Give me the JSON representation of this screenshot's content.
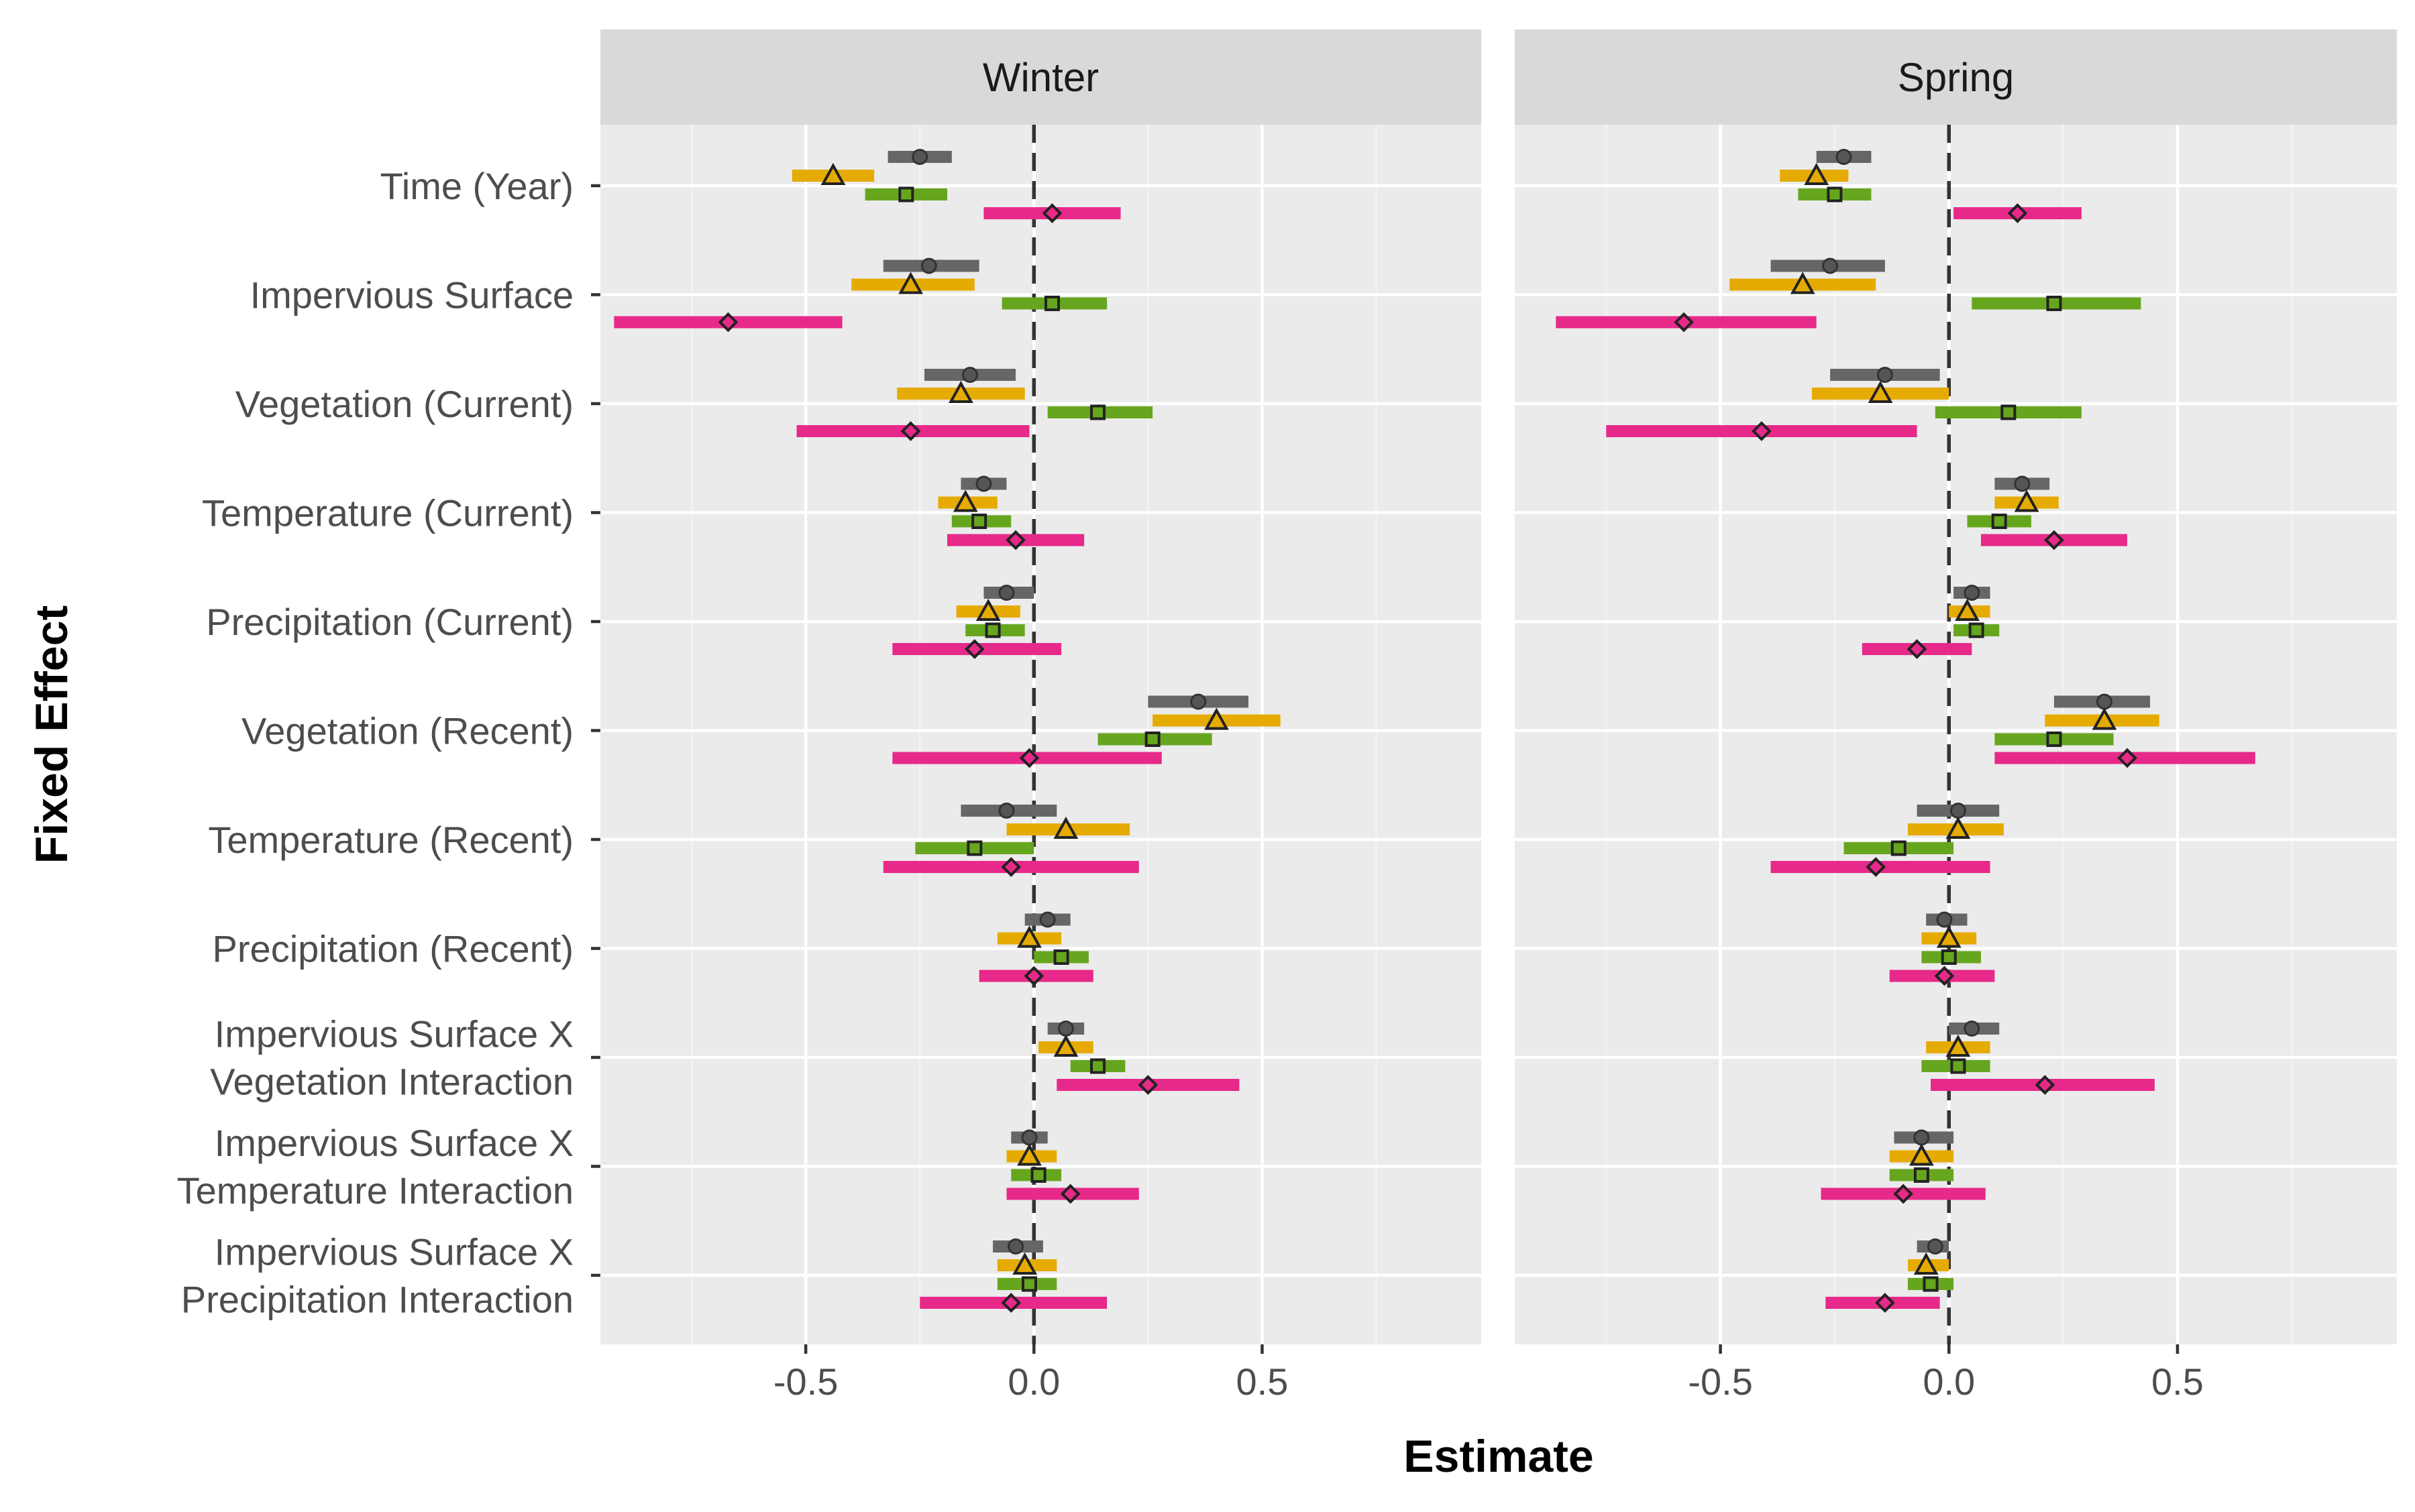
{
  "chart_data": {
    "type": "forest",
    "xlabel": "Estimate",
    "ylabel": "Fixed Effect",
    "xlim": [
      -0.95,
      0.98
    ],
    "x_ticks": [
      -0.5,
      0.0,
      0.5
    ],
    "x_tick_labels": [
      "-0.5",
      "0.0",
      "0.5"
    ],
    "reference_line": 0,
    "grid": true,
    "legend": "none",
    "effects": [
      [
        "Time (Year)"
      ],
      [
        "Impervious Surface"
      ],
      [
        "Vegetation (Current)"
      ],
      [
        "Temperature (Current)"
      ],
      [
        "Precipitation (Current)"
      ],
      [
        "Vegetation (Recent)"
      ],
      [
        "Temperature (Recent)"
      ],
      [
        "Precipitation (Recent)"
      ],
      [
        "Impervious Surface X",
        "Vegetation Interaction"
      ],
      [
        "Impervious Surface X",
        "Temperature Interaction"
      ],
      [
        "Impervious Surface X",
        "Precipitation Interaction"
      ]
    ],
    "series_styles": [
      {
        "color": "#666666",
        "marker": "circle"
      },
      {
        "color": "#E6AB02",
        "marker": "triangle"
      },
      {
        "color": "#66A61E",
        "marker": "square"
      },
      {
        "color": "#E7298A",
        "marker": "diamond"
      }
    ],
    "panels": [
      {
        "title": "Winter",
        "estimates": [
          [
            [
              -0.25,
              -0.32,
              -0.18
            ],
            [
              -0.44,
              -0.53,
              -0.35
            ],
            [
              -0.28,
              -0.37,
              -0.19
            ],
            [
              0.04,
              -0.11,
              0.19
            ]
          ],
          [
            [
              -0.23,
              -0.33,
              -0.12
            ],
            [
              -0.27,
              -0.4,
              -0.13
            ],
            [
              0.04,
              -0.07,
              0.16
            ],
            [
              -0.67,
              -0.92,
              -0.42
            ]
          ],
          [
            [
              -0.14,
              -0.24,
              -0.04
            ],
            [
              -0.16,
              -0.3,
              -0.02
            ],
            [
              0.14,
              0.03,
              0.26
            ],
            [
              -0.27,
              -0.52,
              -0.01
            ]
          ],
          [
            [
              -0.11,
              -0.16,
              -0.06
            ],
            [
              -0.15,
              -0.21,
              -0.08
            ],
            [
              -0.12,
              -0.18,
              -0.05
            ],
            [
              -0.04,
              -0.19,
              0.11
            ]
          ],
          [
            [
              -0.06,
              -0.11,
              0.0
            ],
            [
              -0.1,
              -0.17,
              -0.03
            ],
            [
              -0.09,
              -0.15,
              -0.02
            ],
            [
              -0.13,
              -0.31,
              0.06
            ]
          ],
          [
            [
              0.36,
              0.25,
              0.47
            ],
            [
              0.4,
              0.26,
              0.54
            ],
            [
              0.26,
              0.14,
              0.39
            ],
            [
              -0.01,
              -0.31,
              0.28
            ]
          ],
          [
            [
              -0.06,
              -0.16,
              0.05
            ],
            [
              0.07,
              -0.06,
              0.21
            ],
            [
              -0.13,
              -0.26,
              0.0
            ],
            [
              -0.05,
              -0.33,
              0.23
            ]
          ],
          [
            [
              0.03,
              -0.02,
              0.08
            ],
            [
              -0.01,
              -0.08,
              0.06
            ],
            [
              0.06,
              0.0,
              0.12
            ],
            [
              0.0,
              -0.12,
              0.13
            ]
          ],
          [
            [
              0.07,
              0.03,
              0.11
            ],
            [
              0.07,
              0.01,
              0.13
            ],
            [
              0.14,
              0.08,
              0.2
            ],
            [
              0.25,
              0.05,
              0.45
            ]
          ],
          [
            [
              -0.01,
              -0.05,
              0.03
            ],
            [
              -0.01,
              -0.06,
              0.05
            ],
            [
              0.01,
              -0.05,
              0.06
            ],
            [
              0.08,
              -0.06,
              0.23
            ]
          ],
          [
            [
              -0.04,
              -0.09,
              0.02
            ],
            [
              -0.02,
              -0.08,
              0.05
            ],
            [
              -0.01,
              -0.08,
              0.05
            ],
            [
              -0.05,
              -0.25,
              0.16
            ]
          ]
        ]
      },
      {
        "title": "Spring",
        "estimates": [
          [
            [
              -0.23,
              -0.29,
              -0.17
            ],
            [
              -0.29,
              -0.37,
              -0.22
            ],
            [
              -0.25,
              -0.33,
              -0.17
            ],
            [
              0.15,
              0.01,
              0.29
            ]
          ],
          [
            [
              -0.26,
              -0.39,
              -0.14
            ],
            [
              -0.32,
              -0.48,
              -0.16
            ],
            [
              0.23,
              0.05,
              0.42
            ],
            [
              -0.58,
              -0.86,
              -0.29
            ]
          ],
          [
            [
              -0.14,
              -0.26,
              -0.02
            ],
            [
              -0.15,
              -0.3,
              0.0
            ],
            [
              0.13,
              -0.03,
              0.29
            ],
            [
              -0.41,
              -0.75,
              -0.07
            ]
          ],
          [
            [
              0.16,
              0.1,
              0.22
            ],
            [
              0.17,
              0.1,
              0.24
            ],
            [
              0.11,
              0.04,
              0.18
            ],
            [
              0.23,
              0.07,
              0.39
            ]
          ],
          [
            [
              0.05,
              0.01,
              0.09
            ],
            [
              0.04,
              0.0,
              0.09
            ],
            [
              0.06,
              0.01,
              0.11
            ],
            [
              -0.07,
              -0.19,
              0.05
            ]
          ],
          [
            [
              0.34,
              0.23,
              0.44
            ],
            [
              0.34,
              0.21,
              0.46
            ],
            [
              0.23,
              0.1,
              0.36
            ],
            [
              0.39,
              0.1,
              0.67
            ]
          ],
          [
            [
              0.02,
              -0.07,
              0.11
            ],
            [
              0.02,
              -0.09,
              0.12
            ],
            [
              -0.11,
              -0.23,
              0.01
            ],
            [
              -0.16,
              -0.39,
              0.09
            ]
          ],
          [
            [
              -0.01,
              -0.05,
              0.04
            ],
            [
              0.0,
              -0.06,
              0.06
            ],
            [
              0.0,
              -0.06,
              0.07
            ],
            [
              -0.01,
              -0.13,
              0.1
            ]
          ],
          [
            [
              0.05,
              0.0,
              0.11
            ],
            [
              0.02,
              -0.05,
              0.09
            ],
            [
              0.02,
              -0.06,
              0.09
            ],
            [
              0.21,
              -0.04,
              0.45
            ]
          ],
          [
            [
              -0.06,
              -0.12,
              0.01
            ],
            [
              -0.06,
              -0.13,
              0.01
            ],
            [
              -0.06,
              -0.13,
              0.01
            ],
            [
              -0.1,
              -0.28,
              0.08
            ]
          ],
          [
            [
              -0.03,
              -0.07,
              0.0
            ],
            [
              -0.05,
              -0.09,
              0.0
            ],
            [
              -0.04,
              -0.09,
              0.01
            ],
            [
              -0.14,
              -0.27,
              -0.02
            ]
          ]
        ]
      }
    ]
  }
}
